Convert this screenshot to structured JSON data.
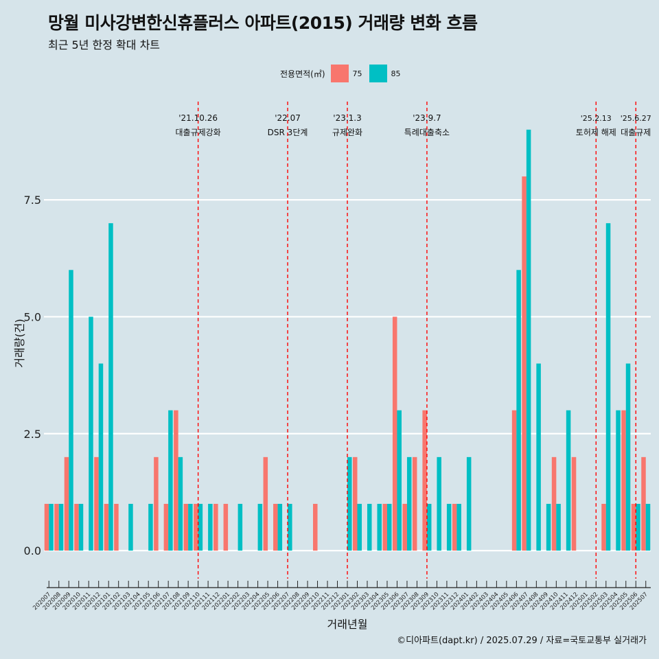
{
  "title": "망월 미사강변한신휴플러스 아파트(2015) 거래량 변화 흐름",
  "subtitle": "최근 5년 한정 확대 차트",
  "caption": "©디아파트(dapt.kr) / 2025.07.29 / 자료=국토교통부 실거래가",
  "legend": {
    "title": "전용면적(㎡)",
    "items": [
      {
        "label": "75",
        "color": "#f8766d"
      },
      {
        "label": "85",
        "color": "#00bfc4"
      }
    ]
  },
  "chart_data": {
    "type": "bar",
    "xlabel": "거래년월",
    "ylabel": "거래량(건)",
    "ylim": [
      -0.6,
      9.6
    ],
    "yticks": [
      0,
      2.5,
      5,
      7.5
    ],
    "ytick_labels": [
      "0.0",
      "2.5",
      "5.0",
      "7.5"
    ],
    "grid": true,
    "categories": [
      "202007",
      "202008",
      "202009",
      "202010",
      "202011",
      "202012",
      "202101",
      "202102",
      "202103",
      "202104",
      "202105",
      "202106",
      "202107",
      "202108",
      "202109",
      "202110",
      "202111",
      "202112",
      "202201",
      "202202",
      "202203",
      "202204",
      "202205",
      "202206",
      "202207",
      "202208",
      "202209",
      "202210",
      "202211",
      "202212",
      "202301",
      "202302",
      "202303",
      "202304",
      "202305",
      "202306",
      "202307",
      "202308",
      "202309",
      "202310",
      "202311",
      "202312",
      "202401",
      "202402",
      "202403",
      "202404",
      "202405",
      "202406",
      "202407",
      "202408",
      "202409",
      "202410",
      "202411",
      "202412",
      "202501",
      "202502",
      "202503",
      "202504",
      "202505",
      "202506",
      "202507"
    ],
    "series": [
      {
        "name": "75",
        "color": "#f8766d",
        "values": [
          1,
          1,
          2,
          1,
          0,
          2,
          1,
          1,
          0,
          0,
          0,
          2,
          1,
          3,
          1,
          1,
          0,
          1,
          1,
          0,
          0,
          0,
          2,
          1,
          0,
          0,
          0,
          1,
          0,
          0,
          0,
          2,
          0,
          0,
          1,
          5,
          1,
          2,
          3,
          0,
          0,
          1,
          0,
          0,
          0,
          0,
          0,
          3,
          8,
          0,
          0,
          2,
          0,
          2,
          0,
          0,
          1,
          0,
          3,
          1,
          2
        ]
      },
      {
        "name": "85",
        "color": "#00bfc4",
        "values": [
          1,
          1,
          6,
          1,
          5,
          4,
          7,
          0,
          1,
          0,
          1,
          0,
          3,
          2,
          1,
          1,
          1,
          0,
          0,
          1,
          0,
          1,
          0,
          1,
          1,
          0,
          0,
          0,
          0,
          0,
          2,
          1,
          1,
          1,
          1,
          3,
          2,
          0,
          1,
          2,
          1,
          1,
          2,
          0,
          0,
          0,
          0,
          6,
          9,
          4,
          1,
          1,
          3,
          0,
          0,
          0,
          7,
          3,
          4,
          1,
          1
        ]
      }
    ],
    "events": [
      {
        "date": "'21.10.26",
        "label": "대출규제강화",
        "at": 15.0
      },
      {
        "date": "'22.07",
        "label": "DSR 3단계",
        "at": 24.0
      },
      {
        "date": "'23.1.3",
        "label": "규제완화",
        "at": 30.0
      },
      {
        "date": "'23.9.7",
        "label": "특례대출축소",
        "at": 38.0
      },
      {
        "date": "'25.2.13",
        "label": "토허제 해제",
        "at": 55.0
      },
      {
        "date": "'25.6.27",
        "label": "대출규제",
        "at": 59.0
      }
    ]
  }
}
